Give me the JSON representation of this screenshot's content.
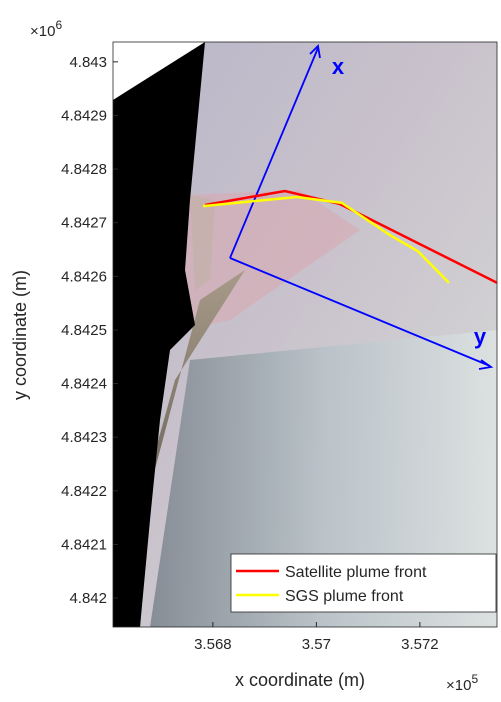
{
  "chart_data": {
    "type": "line",
    "xlabel": "x coordinate (m)",
    "ylabel": "y coordinate (m)",
    "x_multiplier": {
      "base": "×10",
      "power": "5"
    },
    "y_multiplier": {
      "base": "×10",
      "power": "6"
    },
    "xlim": [
      3.56607,
      3.57349
    ],
    "ylim": [
      4.841946,
      4.843037
    ],
    "xticks": [
      3.568,
      3.57,
      3.572
    ],
    "yticks": [
      4.842,
      4.8421,
      4.8422,
      4.8423,
      4.8424,
      4.8425,
      4.8426,
      4.8427,
      4.8428,
      4.8429,
      4.843
    ],
    "annotations": [
      "x",
      "y"
    ],
    "legend": "lower right",
    "series": [
      {
        "name": "Satellite plume front",
        "color": "#ff0000",
        "x": [
          3.56785,
          3.56939,
          3.57045,
          3.57349
        ],
        "values": [
          4.842733,
          4.842759,
          4.842735,
          4.842588
        ]
      },
      {
        "name": "SGS plume front",
        "color": "#ffff00",
        "x": [
          3.56781,
          3.56962,
          3.57049,
          3.57142,
          3.57196,
          3.57256
        ],
        "values": [
          4.842731,
          4.842748,
          4.842737,
          4.842677,
          4.842647,
          4.842588
        ]
      }
    ]
  }
}
